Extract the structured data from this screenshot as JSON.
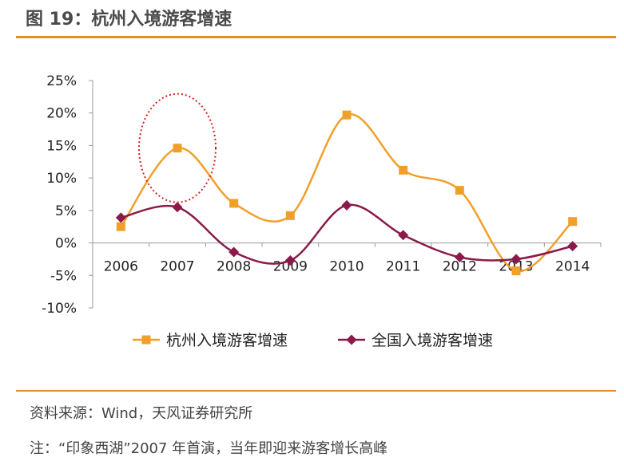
{
  "figure_title": "图 19：杭州入境游客增速",
  "source_text": "资料来源：Wind，天风证券研究所",
  "note_text": "注：“印象西湖”2007 年首演，当年即迎来游客增长高峰",
  "colors": {
    "hangzhou": "#f0a02a",
    "national": "#8b1a4a",
    "annotation": "#d62020",
    "rule": "#e98a2a"
  },
  "chart_data": {
    "type": "line",
    "categories": [
      "2006",
      "2007",
      "2008",
      "2009",
      "2010",
      "2011",
      "2012",
      "2013",
      "2014"
    ],
    "series": [
      {
        "name": "杭州入境游客增速",
        "marker": "square",
        "values": [
          2.5,
          14.6,
          6.1,
          4.2,
          19.7,
          11.2,
          8.1,
          -4.3,
          3.3
        ]
      },
      {
        "name": "全国入境游客增速",
        "marker": "diamond",
        "values": [
          3.9,
          5.5,
          -1.4,
          -2.7,
          5.8,
          1.2,
          -2.2,
          -2.5,
          -0.5
        ]
      }
    ],
    "ylim": [
      -10,
      25
    ],
    "yticks": [
      -10,
      -5,
      0,
      5,
      10,
      15,
      20,
      25
    ],
    "ytick_labels": [
      "-10%",
      "-5%",
      "0%",
      "5%",
      "10%",
      "15%",
      "20%",
      "25%"
    ],
    "legend_position": "bottom",
    "grid": false,
    "annotation": {
      "type": "dotted-ellipse",
      "around": "2007"
    }
  }
}
